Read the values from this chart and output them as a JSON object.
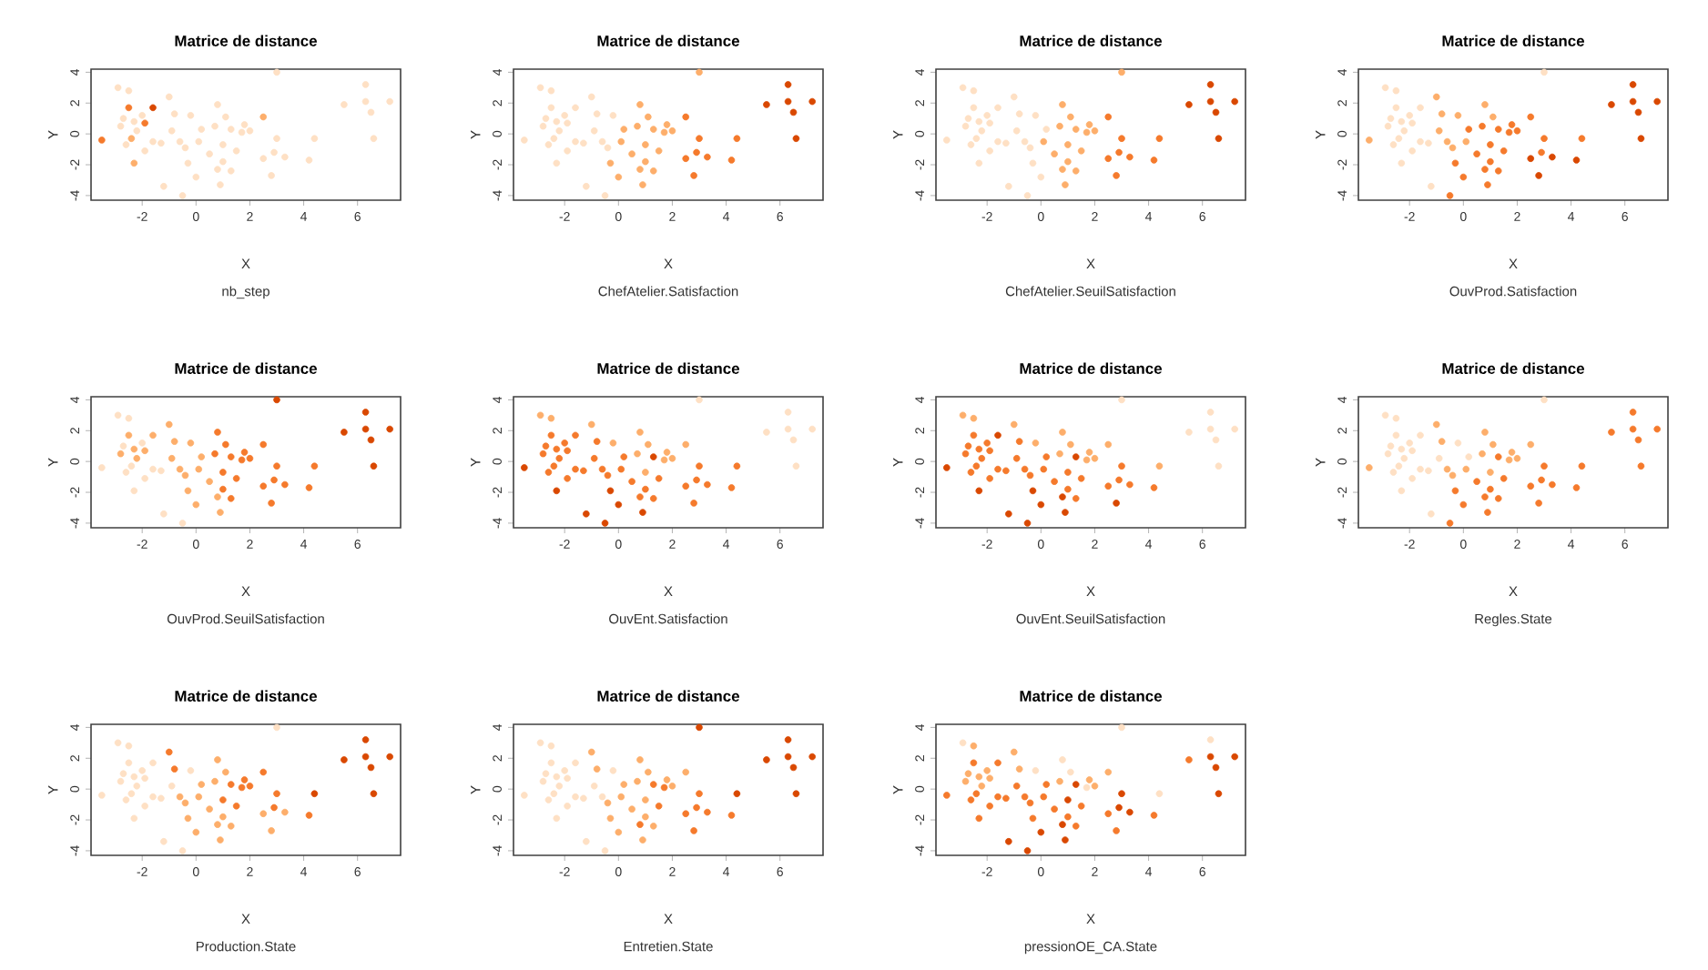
{
  "chart_data": [
    {
      "type": "scatter",
      "title": "Matrice de distance",
      "subtitle": "nb_step",
      "xlabel": "X",
      "ylabel": "Y",
      "marker": "circle",
      "xlim": [
        -3.9,
        7.6
      ],
      "ylim": [
        -4.3,
        4.2
      ],
      "xticks": [
        -2,
        0,
        2,
        4,
        6
      ],
      "yticks": [
        -4,
        -2,
        0,
        2,
        4
      ],
      "x": [
        -3.5,
        -2.9,
        -2.8,
        -2.7,
        -2.6,
        -2.5,
        -2.5,
        -2.4,
        -2.3,
        -2.3,
        -2.2,
        -2.0,
        -1.9,
        -1.9,
        -1.6,
        -1.6,
        -1.3,
        -1.2,
        -1.0,
        -0.9,
        -0.8,
        -0.6,
        -0.5,
        -0.4,
        -0.3,
        -0.2,
        0.0,
        0.1,
        0.2,
        0.5,
        0.7,
        0.8,
        0.8,
        0.9,
        1.0,
        1.0,
        1.1,
        1.3,
        1.3,
        1.5,
        1.7,
        1.8,
        2.0,
        2.5,
        2.5,
        2.8,
        2.9,
        3.0,
        3.0,
        3.3,
        4.2,
        4.4,
        5.5,
        6.3,
        6.3,
        6.5,
        6.6,
        7.2
      ],
      "values": [
        -0.4,
        3.0,
        0.5,
        1.0,
        -0.7,
        2.8,
        1.7,
        -0.3,
        -1.9,
        0.8,
        0.2,
        1.2,
        0.7,
        -1.1,
        1.7,
        -0.5,
        -0.6,
        -3.4,
        2.4,
        0.2,
        1.3,
        -0.5,
        -4.0,
        -0.9,
        -1.9,
        1.2,
        -2.8,
        -0.5,
        0.3,
        -1.3,
        0.5,
        -2.3,
        1.9,
        -3.3,
        -0.7,
        -1.8,
        1.1,
        0.3,
        -2.4,
        -1.1,
        0.1,
        0.6,
        0.2,
        1.1,
        -1.6,
        -2.7,
        -1.2,
        4.0,
        -0.3,
        -1.5,
        -1.7,
        -0.3,
        1.9,
        3.2,
        2.1,
        1.4,
        -0.3,
        2.1
      ],
      "colors": [
        "#f57a2c",
        "#fee0c4",
        "#fee0c4",
        "#fee0c4",
        "#fee0c4",
        "#fee0c4",
        "#f57a2c",
        "#fdae6b",
        "#fdae6b",
        "#fee0c4",
        "#fee0c4",
        "#fee0c4",
        "#f57a2c",
        "#fee0c4",
        "#d94801",
        "#fee0c4",
        "#fee0c4",
        "#fee0c4",
        "#fee0c4",
        "#fee0c4",
        "#fee0c4",
        "#fee0c4",
        "#fee0c4",
        "#fee0c4",
        "#fee0c4",
        "#fee0c4",
        "#fee0c4",
        "#fee0c4",
        "#fee0c4",
        "#fee0c4",
        "#fee0c4",
        "#fee0c4",
        "#fee0c4",
        "#fee0c4",
        "#fee0c4",
        "#fee0c4",
        "#fee0c4",
        "#fee0c4",
        "#fee0c4",
        "#fee0c4",
        "#fee0c4",
        "#fee0c4",
        "#fee0c4",
        "#fdae6b",
        "#fee0c4",
        "#fee0c4",
        "#fee0c4",
        "#fee0c4",
        "#fee0c4",
        "#fee0c4",
        "#fee0c4",
        "#fee0c4",
        "#fee0c4",
        "#fee0c4",
        "#fee0c4",
        "#fee0c4",
        "#fee0c4",
        "#fee0c4"
      ]
    },
    {
      "type": "scatter",
      "title": "Matrice de distance",
      "subtitle": "ChefAtelier.Satisfaction",
      "xlabel": "X",
      "ylabel": "Y",
      "marker": "circle",
      "xlim": [
        -3.9,
        7.6
      ],
      "ylim": [
        -4.3,
        4.2
      ],
      "xticks": [
        -2,
        0,
        2,
        4,
        6
      ],
      "yticks": [
        -4,
        -2,
        0,
        2,
        4
      ],
      "x": [
        -3.5,
        -2.9,
        -2.8,
        -2.7,
        -2.6,
        -2.5,
        -2.5,
        -2.4,
        -2.3,
        -2.3,
        -2.2,
        -2.0,
        -1.9,
        -1.9,
        -1.6,
        -1.6,
        -1.3,
        -1.2,
        -1.0,
        -0.9,
        -0.8,
        -0.6,
        -0.5,
        -0.4,
        -0.3,
        -0.2,
        0.0,
        0.1,
        0.2,
        0.5,
        0.7,
        0.8,
        0.8,
        0.9,
        1.0,
        1.0,
        1.1,
        1.3,
        1.3,
        1.5,
        1.7,
        1.8,
        2.0,
        2.5,
        2.5,
        2.8,
        2.9,
        3.0,
        3.0,
        3.3,
        4.2,
        4.4,
        5.5,
        6.3,
        6.3,
        6.5,
        6.6,
        7.2
      ],
      "values": [
        -0.4,
        3.0,
        0.5,
        1.0,
        -0.7,
        2.8,
        1.7,
        -0.3,
        -1.9,
        0.8,
        0.2,
        1.2,
        0.7,
        -1.1,
        1.7,
        -0.5,
        -0.6,
        -3.4,
        2.4,
        0.2,
        1.3,
        -0.5,
        -4.0,
        -0.9,
        -1.9,
        1.2,
        -2.8,
        -0.5,
        0.3,
        -1.3,
        0.5,
        -2.3,
        1.9,
        -3.3,
        -0.7,
        -1.8,
        1.1,
        0.3,
        -2.4,
        -1.1,
        0.1,
        0.6,
        0.2,
        1.1,
        -1.6,
        -2.7,
        -1.2,
        4.0,
        -0.3,
        -1.5,
        -1.7,
        -0.3,
        1.9,
        3.2,
        2.1,
        1.4,
        -0.3,
        2.1
      ],
      "colors": [
        "#fee0c4",
        "#fee0c4",
        "#fee0c4",
        "#fee0c4",
        "#fee0c4",
        "#fee0c4",
        "#fee0c4",
        "#fee0c4",
        "#fee0c4",
        "#fee0c4",
        "#fee0c4",
        "#fee0c4",
        "#fee0c4",
        "#fee0c4",
        "#fee0c4",
        "#fee0c4",
        "#fee0c4",
        "#fee0c4",
        "#fee0c4",
        "#fee0c4",
        "#fee0c4",
        "#fee0c4",
        "#fee0c4",
        "#fee0c4",
        "#fdae6b",
        "#fee0c4",
        "#fdae6b",
        "#fdae6b",
        "#fdae6b",
        "#fdae6b",
        "#fdae6b",
        "#fdae6b",
        "#fdae6b",
        "#fdae6b",
        "#fdae6b",
        "#fdae6b",
        "#fdae6b",
        "#fdae6b",
        "#fdae6b",
        "#fdae6b",
        "#fdae6b",
        "#fdae6b",
        "#fdae6b",
        "#f57a2c",
        "#f57a2c",
        "#f57a2c",
        "#f57a2c",
        "#fdae6b",
        "#f57a2c",
        "#f57a2c",
        "#f57a2c",
        "#f57a2c",
        "#d94801",
        "#d94801",
        "#d94801",
        "#d94801",
        "#d94801",
        "#d94801"
      ]
    },
    {
      "type": "scatter",
      "title": "Matrice de distance",
      "subtitle": "ChefAtelier.SeuilSatisfaction",
      "xlabel": "X",
      "ylabel": "Y",
      "marker": "circle",
      "xlim": [
        -3.9,
        7.6
      ],
      "ylim": [
        -4.3,
        4.2
      ],
      "xticks": [
        -2,
        0,
        2,
        4,
        6
      ],
      "yticks": [
        -4,
        -2,
        0,
        2,
        4
      ],
      "x": [
        -3.5,
        -2.9,
        -2.8,
        -2.7,
        -2.6,
        -2.5,
        -2.5,
        -2.4,
        -2.3,
        -2.3,
        -2.2,
        -2.0,
        -1.9,
        -1.9,
        -1.6,
        -1.6,
        -1.3,
        -1.2,
        -1.0,
        -0.9,
        -0.8,
        -0.6,
        -0.5,
        -0.4,
        -0.3,
        -0.2,
        0.0,
        0.1,
        0.2,
        0.5,
        0.7,
        0.8,
        0.8,
        0.9,
        1.0,
        1.0,
        1.1,
        1.3,
        1.3,
        1.5,
        1.7,
        1.8,
        2.0,
        2.5,
        2.5,
        2.8,
        2.9,
        3.0,
        3.0,
        3.3,
        4.2,
        4.4,
        5.5,
        6.3,
        6.3,
        6.5,
        6.6,
        7.2
      ],
      "values": [
        -0.4,
        3.0,
        0.5,
        1.0,
        -0.7,
        2.8,
        1.7,
        -0.3,
        -1.9,
        0.8,
        0.2,
        1.2,
        0.7,
        -1.1,
        1.7,
        -0.5,
        -0.6,
        -3.4,
        2.4,
        0.2,
        1.3,
        -0.5,
        -4.0,
        -0.9,
        -1.9,
        1.2,
        -2.8,
        -0.5,
        0.3,
        -1.3,
        0.5,
        -2.3,
        1.9,
        -3.3,
        -0.7,
        -1.8,
        1.1,
        0.3,
        -2.4,
        -1.1,
        0.1,
        0.6,
        0.2,
        1.1,
        -1.6,
        -2.7,
        -1.2,
        4.0,
        -0.3,
        -1.5,
        -1.7,
        -0.3,
        1.9,
        3.2,
        2.1,
        1.4,
        -0.3,
        2.1
      ],
      "colors": [
        "#fee0c4",
        "#fee0c4",
        "#fee0c4",
        "#fee0c4",
        "#fee0c4",
        "#fee0c4",
        "#fee0c4",
        "#fee0c4",
        "#fee0c4",
        "#fee0c4",
        "#fee0c4",
        "#fee0c4",
        "#fee0c4",
        "#fee0c4",
        "#fee0c4",
        "#fee0c4",
        "#fee0c4",
        "#fee0c4",
        "#fee0c4",
        "#fee0c4",
        "#fee0c4",
        "#fee0c4",
        "#fee0c4",
        "#fee0c4",
        "#fee0c4",
        "#fee0c4",
        "#fee0c4",
        "#fdae6b",
        "#fee0c4",
        "#fdae6b",
        "#fdae6b",
        "#fdae6b",
        "#fdae6b",
        "#fdae6b",
        "#fdae6b",
        "#fdae6b",
        "#fdae6b",
        "#fdae6b",
        "#fdae6b",
        "#fdae6b",
        "#fdae6b",
        "#fdae6b",
        "#fdae6b",
        "#f57a2c",
        "#f57a2c",
        "#f57a2c",
        "#f57a2c",
        "#fdae6b",
        "#f57a2c",
        "#f57a2c",
        "#f57a2c",
        "#f57a2c",
        "#d94801",
        "#d94801",
        "#d94801",
        "#d94801",
        "#d94801",
        "#d94801"
      ]
    },
    {
      "type": "scatter",
      "title": "Matrice de distance",
      "subtitle": "OuvProd.Satisfaction",
      "xlabel": "X",
      "ylabel": "Y",
      "marker": "circle",
      "xlim": [
        -3.9,
        7.6
      ],
      "ylim": [
        -4.3,
        4.2
      ],
      "xticks": [
        -2,
        0,
        2,
        4,
        6
      ],
      "yticks": [
        -4,
        -2,
        0,
        2,
        4
      ],
      "x": [
        -3.5,
        -2.9,
        -2.8,
        -2.7,
        -2.6,
        -2.5,
        -2.5,
        -2.4,
        -2.3,
        -2.3,
        -2.2,
        -2.0,
        -1.9,
        -1.9,
        -1.6,
        -1.6,
        -1.3,
        -1.2,
        -1.0,
        -0.9,
        -0.8,
        -0.6,
        -0.5,
        -0.4,
        -0.3,
        -0.2,
        0.0,
        0.1,
        0.2,
        0.5,
        0.7,
        0.8,
        0.8,
        0.9,
        1.0,
        1.0,
        1.1,
        1.3,
        1.3,
        1.5,
        1.7,
        1.8,
        2.0,
        2.5,
        2.5,
        2.8,
        2.9,
        3.0,
        3.0,
        3.3,
        4.2,
        4.4,
        5.5,
        6.3,
        6.3,
        6.5,
        6.6,
        7.2
      ],
      "values": [
        -0.4,
        3.0,
        0.5,
        1.0,
        -0.7,
        2.8,
        1.7,
        -0.3,
        -1.9,
        0.8,
        0.2,
        1.2,
        0.7,
        -1.1,
        1.7,
        -0.5,
        -0.6,
        -3.4,
        2.4,
        0.2,
        1.3,
        -0.5,
        -4.0,
        -0.9,
        -1.9,
        1.2,
        -2.8,
        -0.5,
        0.3,
        -1.3,
        0.5,
        -2.3,
        1.9,
        -3.3,
        -0.7,
        -1.8,
        1.1,
        0.3,
        -2.4,
        -1.1,
        0.1,
        0.6,
        0.2,
        1.1,
        -1.6,
        -2.7,
        -1.2,
        4.0,
        -0.3,
        -1.5,
        -1.7,
        -0.3,
        1.9,
        3.2,
        2.1,
        1.4,
        -0.3,
        2.1
      ],
      "colors": [
        "#fdae6b",
        "#fee0c4",
        "#fee0c4",
        "#fee0c4",
        "#fee0c4",
        "#fee0c4",
        "#fee0c4",
        "#fee0c4",
        "#fee0c4",
        "#fee0c4",
        "#fee0c4",
        "#fee0c4",
        "#fee0c4",
        "#fee0c4",
        "#fee0c4",
        "#fee0c4",
        "#fee0c4",
        "#fee0c4",
        "#fdae6b",
        "#fdae6b",
        "#fdae6b",
        "#fdae6b",
        "#f57a2c",
        "#fdae6b",
        "#f57a2c",
        "#fdae6b",
        "#f57a2c",
        "#fdae6b",
        "#f57a2c",
        "#f57a2c",
        "#f57a2c",
        "#f57a2c",
        "#fdae6b",
        "#f57a2c",
        "#f57a2c",
        "#f57a2c",
        "#fdae6b",
        "#f57a2c",
        "#f57a2c",
        "#f57a2c",
        "#f57a2c",
        "#f57a2c",
        "#f57a2c",
        "#f57a2c",
        "#d94801",
        "#d94801",
        "#f57a2c",
        "#fee0c4",
        "#f57a2c",
        "#d94801",
        "#d94801",
        "#f57a2c",
        "#d94801",
        "#d94801",
        "#d94801",
        "#d94801",
        "#d94801",
        "#d94801"
      ]
    },
    {
      "type": "scatter",
      "title": "Matrice de distance",
      "subtitle": "OuvProd.SeuilSatisfaction",
      "xlabel": "X",
      "ylabel": "Y",
      "marker": "circle",
      "xlim": [
        -3.9,
        7.6
      ],
      "ylim": [
        -4.3,
        4.2
      ],
      "xticks": [
        -2,
        0,
        2,
        4,
        6
      ],
      "yticks": [
        -4,
        -2,
        0,
        2,
        4
      ],
      "x": [
        -3.5,
        -2.9,
        -2.8,
        -2.7,
        -2.6,
        -2.5,
        -2.5,
        -2.4,
        -2.3,
        -2.3,
        -2.2,
        -2.0,
        -1.9,
        -1.9,
        -1.6,
        -1.6,
        -1.3,
        -1.2,
        -1.0,
        -0.9,
        -0.8,
        -0.6,
        -0.5,
        -0.4,
        -0.3,
        -0.2,
        0.0,
        0.1,
        0.2,
        0.5,
        0.7,
        0.8,
        0.8,
        0.9,
        1.0,
        1.0,
        1.1,
        1.3,
        1.3,
        1.5,
        1.7,
        1.8,
        2.0,
        2.5,
        2.5,
        2.8,
        2.9,
        3.0,
        3.0,
        3.3,
        4.2,
        4.4,
        5.5,
        6.3,
        6.3,
        6.5,
        6.6,
        7.2
      ],
      "values": [
        -0.4,
        3.0,
        0.5,
        1.0,
        -0.7,
        2.8,
        1.7,
        -0.3,
        -1.9,
        0.8,
        0.2,
        1.2,
        0.7,
        -1.1,
        1.7,
        -0.5,
        -0.6,
        -3.4,
        2.4,
        0.2,
        1.3,
        -0.5,
        -4.0,
        -0.9,
        -1.9,
        1.2,
        -2.8,
        -0.5,
        0.3,
        -1.3,
        0.5,
        -2.3,
        1.9,
        -3.3,
        -0.7,
        -1.8,
        1.1,
        0.3,
        -2.4,
        -1.1,
        0.1,
        0.6,
        0.2,
        1.1,
        -1.6,
        -2.7,
        -1.2,
        4.0,
        -0.3,
        -1.5,
        -1.7,
        -0.3,
        1.9,
        3.2,
        2.1,
        1.4,
        -0.3,
        2.1
      ],
      "colors": [
        "#fee0c4",
        "#fee0c4",
        "#fdae6b",
        "#fee0c4",
        "#fee0c4",
        "#fee0c4",
        "#fdae6b",
        "#fee0c4",
        "#fee0c4",
        "#fdae6b",
        "#fdae6b",
        "#fee0c4",
        "#fdae6b",
        "#fee0c4",
        "#fdae6b",
        "#fee0c4",
        "#fee0c4",
        "#fee0c4",
        "#fdae6b",
        "#fdae6b",
        "#fdae6b",
        "#fdae6b",
        "#fee0c4",
        "#fdae6b",
        "#fdae6b",
        "#fdae6b",
        "#fdae6b",
        "#fdae6b",
        "#fdae6b",
        "#fdae6b",
        "#f57a2c",
        "#fdae6b",
        "#f57a2c",
        "#fdae6b",
        "#f57a2c",
        "#f57a2c",
        "#f57a2c",
        "#f57a2c",
        "#f57a2c",
        "#f57a2c",
        "#f57a2c",
        "#f57a2c",
        "#f57a2c",
        "#f57a2c",
        "#f57a2c",
        "#f57a2c",
        "#f57a2c",
        "#d94801",
        "#f57a2c",
        "#f57a2c",
        "#f57a2c",
        "#f57a2c",
        "#d94801",
        "#d94801",
        "#d94801",
        "#d94801",
        "#d94801",
        "#d94801"
      ]
    },
    {
      "type": "scatter",
      "title": "Matrice de distance",
      "subtitle": "OuvEnt.Satisfaction",
      "xlabel": "X",
      "ylabel": "Y",
      "marker": "circle",
      "xlim": [
        -3.9,
        7.6
      ],
      "ylim": [
        -4.3,
        4.2
      ],
      "xticks": [
        -2,
        0,
        2,
        4,
        6
      ],
      "yticks": [
        -4,
        -2,
        0,
        2,
        4
      ],
      "x": [
        -3.5,
        -2.9,
        -2.8,
        -2.7,
        -2.6,
        -2.5,
        -2.5,
        -2.4,
        -2.3,
        -2.3,
        -2.2,
        -2.0,
        -1.9,
        -1.9,
        -1.6,
        -1.6,
        -1.3,
        -1.2,
        -1.0,
        -0.9,
        -0.8,
        -0.6,
        -0.5,
        -0.4,
        -0.3,
        -0.2,
        0.0,
        0.1,
        0.2,
        0.5,
        0.7,
        0.8,
        0.8,
        0.9,
        1.0,
        1.0,
        1.1,
        1.3,
        1.3,
        1.5,
        1.7,
        1.8,
        2.0,
        2.5,
        2.5,
        2.8,
        2.9,
        3.0,
        3.0,
        3.3,
        4.2,
        4.4,
        5.5,
        6.3,
        6.3,
        6.5,
        6.6,
        7.2
      ],
      "values": [
        -0.4,
        3.0,
        0.5,
        1.0,
        -0.7,
        2.8,
        1.7,
        -0.3,
        -1.9,
        0.8,
        0.2,
        1.2,
        0.7,
        -1.1,
        1.7,
        -0.5,
        -0.6,
        -3.4,
        2.4,
        0.2,
        1.3,
        -0.5,
        -4.0,
        -0.9,
        -1.9,
        1.2,
        -2.8,
        -0.5,
        0.3,
        -1.3,
        0.5,
        -2.3,
        1.9,
        -3.3,
        -0.7,
        -1.8,
        1.1,
        0.3,
        -2.4,
        -1.1,
        0.1,
        0.6,
        0.2,
        1.1,
        -1.6,
        -2.7,
        -1.2,
        4.0,
        -0.3,
        -1.5,
        -1.7,
        -0.3,
        1.9,
        3.2,
        2.1,
        1.4,
        -0.3,
        2.1
      ],
      "colors": [
        "#d94801",
        "#fdae6b",
        "#f57a2c",
        "#f57a2c",
        "#f57a2c",
        "#fdae6b",
        "#f57a2c",
        "#f57a2c",
        "#d94801",
        "#f57a2c",
        "#f57a2c",
        "#f57a2c",
        "#f57a2c",
        "#f57a2c",
        "#f57a2c",
        "#f57a2c",
        "#f57a2c",
        "#d94801",
        "#fdae6b",
        "#f57a2c",
        "#f57a2c",
        "#f57a2c",
        "#d94801",
        "#f57a2c",
        "#d94801",
        "#fdae6b",
        "#d94801",
        "#f57a2c",
        "#f57a2c",
        "#f57a2c",
        "#fdae6b",
        "#f57a2c",
        "#fdae6b",
        "#d94801",
        "#fdae6b",
        "#f57a2c",
        "#fdae6b",
        "#d94801",
        "#f57a2c",
        "#f57a2c",
        "#fdae6b",
        "#fdae6b",
        "#fdae6b",
        "#fdae6b",
        "#f57a2c",
        "#f57a2c",
        "#f57a2c",
        "#fee0c4",
        "#f57a2c",
        "#f57a2c",
        "#f57a2c",
        "#f57a2c",
        "#fee0c4",
        "#fee0c4",
        "#fee0c4",
        "#fee0c4",
        "#fee0c4",
        "#fee0c4"
      ]
    },
    {
      "type": "scatter",
      "title": "Matrice de distance",
      "subtitle": "OuvEnt.SeuilSatisfaction",
      "xlabel": "X",
      "ylabel": "Y",
      "marker": "circle",
      "xlim": [
        -3.9,
        7.6
      ],
      "ylim": [
        -4.3,
        4.2
      ],
      "xticks": [
        -2,
        0,
        2,
        4,
        6
      ],
      "yticks": [
        -4,
        -2,
        0,
        2,
        4
      ],
      "x": [
        -3.5,
        -2.9,
        -2.8,
        -2.7,
        -2.6,
        -2.5,
        -2.5,
        -2.4,
        -2.3,
        -2.3,
        -2.2,
        -2.0,
        -1.9,
        -1.9,
        -1.6,
        -1.6,
        -1.3,
        -1.2,
        -1.0,
        -0.9,
        -0.8,
        -0.6,
        -0.5,
        -0.4,
        -0.3,
        -0.2,
        0.0,
        0.1,
        0.2,
        0.5,
        0.7,
        0.8,
        0.8,
        0.9,
        1.0,
        1.0,
        1.1,
        1.3,
        1.3,
        1.5,
        1.7,
        1.8,
        2.0,
        2.5,
        2.5,
        2.8,
        2.9,
        3.0,
        3.0,
        3.3,
        4.2,
        4.4,
        5.5,
        6.3,
        6.3,
        6.5,
        6.6,
        7.2
      ],
      "values": [
        -0.4,
        3.0,
        0.5,
        1.0,
        -0.7,
        2.8,
        1.7,
        -0.3,
        -1.9,
        0.8,
        0.2,
        1.2,
        0.7,
        -1.1,
        1.7,
        -0.5,
        -0.6,
        -3.4,
        2.4,
        0.2,
        1.3,
        -0.5,
        -4.0,
        -0.9,
        -1.9,
        1.2,
        -2.8,
        -0.5,
        0.3,
        -1.3,
        0.5,
        -2.3,
        1.9,
        -3.3,
        -0.7,
        -1.8,
        1.1,
        0.3,
        -2.4,
        -1.1,
        0.1,
        0.6,
        0.2,
        1.1,
        -1.6,
        -2.7,
        -1.2,
        4.0,
        -0.3,
        -1.5,
        -1.7,
        -0.3,
        1.9,
        3.2,
        2.1,
        1.4,
        -0.3,
        2.1
      ],
      "colors": [
        "#d94801",
        "#fdae6b",
        "#f57a2c",
        "#f57a2c",
        "#f57a2c",
        "#fdae6b",
        "#f57a2c",
        "#f57a2c",
        "#d94801",
        "#f57a2c",
        "#f57a2c",
        "#f57a2c",
        "#f57a2c",
        "#f57a2c",
        "#d94801",
        "#f57a2c",
        "#f57a2c",
        "#d94801",
        "#fdae6b",
        "#f57a2c",
        "#f57a2c",
        "#f57a2c",
        "#d94801",
        "#f57a2c",
        "#d94801",
        "#fdae6b",
        "#d94801",
        "#f57a2c",
        "#f57a2c",
        "#f57a2c",
        "#fdae6b",
        "#d94801",
        "#fdae6b",
        "#d94801",
        "#f57a2c",
        "#f57a2c",
        "#fdae6b",
        "#d94801",
        "#f57a2c",
        "#f57a2c",
        "#fdae6b",
        "#fdae6b",
        "#fdae6b",
        "#fdae6b",
        "#f57a2c",
        "#d94801",
        "#f57a2c",
        "#fee0c4",
        "#f57a2c",
        "#f57a2c",
        "#f57a2c",
        "#fdae6b",
        "#fee0c4",
        "#fee0c4",
        "#fee0c4",
        "#fee0c4",
        "#fee0c4",
        "#fee0c4"
      ]
    },
    {
      "type": "scatter",
      "title": "Matrice de distance",
      "subtitle": "Regles.State",
      "xlabel": "X",
      "ylabel": "Y",
      "marker": "circle",
      "xlim": [
        -3.9,
        7.6
      ],
      "ylim": [
        -4.3,
        4.2
      ],
      "xticks": [
        -2,
        0,
        2,
        4,
        6
      ],
      "yticks": [
        -4,
        -2,
        0,
        2,
        4
      ],
      "x": [
        -3.5,
        -2.9,
        -2.8,
        -2.7,
        -2.6,
        -2.5,
        -2.5,
        -2.4,
        -2.3,
        -2.3,
        -2.2,
        -2.0,
        -1.9,
        -1.9,
        -1.6,
        -1.6,
        -1.3,
        -1.2,
        -1.0,
        -0.9,
        -0.8,
        -0.6,
        -0.5,
        -0.4,
        -0.3,
        -0.2,
        0.0,
        0.1,
        0.2,
        0.5,
        0.7,
        0.8,
        0.8,
        0.9,
        1.0,
        1.0,
        1.1,
        1.3,
        1.3,
        1.5,
        1.7,
        1.8,
        2.0,
        2.5,
        2.5,
        2.8,
        2.9,
        3.0,
        3.0,
        3.3,
        4.2,
        4.4,
        5.5,
        6.3,
        6.3,
        6.5,
        6.6,
        7.2
      ],
      "values": [
        -0.4,
        3.0,
        0.5,
        1.0,
        -0.7,
        2.8,
        1.7,
        -0.3,
        -1.9,
        0.8,
        0.2,
        1.2,
        0.7,
        -1.1,
        1.7,
        -0.5,
        -0.6,
        -3.4,
        2.4,
        0.2,
        1.3,
        -0.5,
        -4.0,
        -0.9,
        -1.9,
        1.2,
        -2.8,
        -0.5,
        0.3,
        -1.3,
        0.5,
        -2.3,
        1.9,
        -3.3,
        -0.7,
        -1.8,
        1.1,
        0.3,
        -2.4,
        -1.1,
        0.1,
        0.6,
        0.2,
        1.1,
        -1.6,
        -2.7,
        -1.2,
        4.0,
        -0.3,
        -1.5,
        -1.7,
        -0.3,
        1.9,
        3.2,
        2.1,
        1.4,
        -0.3,
        2.1
      ],
      "colors": [
        "#fdae6b",
        "#fee0c4",
        "#fee0c4",
        "#fee0c4",
        "#fee0c4",
        "#fee0c4",
        "#fee0c4",
        "#fee0c4",
        "#fee0c4",
        "#fee0c4",
        "#fee0c4",
        "#fee0c4",
        "#fee0c4",
        "#fee0c4",
        "#fee0c4",
        "#fee0c4",
        "#fee0c4",
        "#fee0c4",
        "#fdae6b",
        "#fee0c4",
        "#fdae6b",
        "#fdae6b",
        "#f57a2c",
        "#fdae6b",
        "#f57a2c",
        "#fee0c4",
        "#f57a2c",
        "#fdae6b",
        "#fee0c4",
        "#f57a2c",
        "#fdae6b",
        "#f57a2c",
        "#fdae6b",
        "#f57a2c",
        "#fdae6b",
        "#f57a2c",
        "#fdae6b",
        "#f57a2c",
        "#f57a2c",
        "#f57a2c",
        "#fdae6b",
        "#fdae6b",
        "#fdae6b",
        "#fdae6b",
        "#f57a2c",
        "#f57a2c",
        "#f57a2c",
        "#fee0c4",
        "#f57a2c",
        "#f57a2c",
        "#f57a2c",
        "#f57a2c",
        "#f57a2c",
        "#f57a2c",
        "#f57a2c",
        "#f57a2c",
        "#f57a2c",
        "#f57a2c"
      ]
    },
    {
      "type": "scatter",
      "title": "Matrice de distance",
      "subtitle": "Production.State",
      "xlabel": "X",
      "ylabel": "Y",
      "marker": "circle",
      "xlim": [
        -3.9,
        7.6
      ],
      "ylim": [
        -4.3,
        4.2
      ],
      "xticks": [
        -2,
        0,
        2,
        4,
        6
      ],
      "yticks": [
        -4,
        -2,
        0,
        2,
        4
      ],
      "x": [
        -3.5,
        -2.9,
        -2.8,
        -2.7,
        -2.6,
        -2.5,
        -2.5,
        -2.4,
        -2.3,
        -2.3,
        -2.2,
        -2.0,
        -1.9,
        -1.9,
        -1.6,
        -1.6,
        -1.3,
        -1.2,
        -1.0,
        -0.9,
        -0.8,
        -0.6,
        -0.5,
        -0.4,
        -0.3,
        -0.2,
        0.0,
        0.1,
        0.2,
        0.5,
        0.7,
        0.8,
        0.8,
        0.9,
        1.0,
        1.0,
        1.1,
        1.3,
        1.3,
        1.5,
        1.7,
        1.8,
        2.0,
        2.5,
        2.5,
        2.8,
        2.9,
        3.0,
        3.0,
        3.3,
        4.2,
        4.4,
        5.5,
        6.3,
        6.3,
        6.5,
        6.6,
        7.2
      ],
      "values": [
        -0.4,
        3.0,
        0.5,
        1.0,
        -0.7,
        2.8,
        1.7,
        -0.3,
        -1.9,
        0.8,
        0.2,
        1.2,
        0.7,
        -1.1,
        1.7,
        -0.5,
        -0.6,
        -3.4,
        2.4,
        0.2,
        1.3,
        -0.5,
        -4.0,
        -0.9,
        -1.9,
        1.2,
        -2.8,
        -0.5,
        0.3,
        -1.3,
        0.5,
        -2.3,
        1.9,
        -3.3,
        -0.7,
        -1.8,
        1.1,
        0.3,
        -2.4,
        -1.1,
        0.1,
        0.6,
        0.2,
        1.1,
        -1.6,
        -2.7,
        -1.2,
        4.0,
        -0.3,
        -1.5,
        -1.7,
        -0.3,
        1.9,
        3.2,
        2.1,
        1.4,
        -0.3,
        2.1
      ],
      "colors": [
        "#fee0c4",
        "#fee0c4",
        "#fee0c4",
        "#fee0c4",
        "#fee0c4",
        "#fee0c4",
        "#fee0c4",
        "#fee0c4",
        "#fee0c4",
        "#fee0c4",
        "#fee0c4",
        "#fee0c4",
        "#fee0c4",
        "#fee0c4",
        "#fee0c4",
        "#fee0c4",
        "#fee0c4",
        "#fee0c4",
        "#f57a2c",
        "#fee0c4",
        "#f57a2c",
        "#fdae6b",
        "#fee0c4",
        "#fdae6b",
        "#fdae6b",
        "#fee0c4",
        "#fdae6b",
        "#fdae6b",
        "#fdae6b",
        "#fdae6b",
        "#fdae6b",
        "#fdae6b",
        "#fdae6b",
        "#fdae6b",
        "#f57a2c",
        "#fdae6b",
        "#fdae6b",
        "#f57a2c",
        "#fdae6b",
        "#f57a2c",
        "#f57a2c",
        "#f57a2c",
        "#f57a2c",
        "#f57a2c",
        "#fdae6b",
        "#fdae6b",
        "#f57a2c",
        "#fee0c4",
        "#f57a2c",
        "#fdae6b",
        "#f57a2c",
        "#d94801",
        "#d94801",
        "#d94801",
        "#d94801",
        "#d94801",
        "#d94801",
        "#d94801"
      ]
    },
    {
      "type": "scatter",
      "title": "Matrice de distance",
      "subtitle": "Entretien.State",
      "xlabel": "X",
      "ylabel": "Y",
      "marker": "circle",
      "xlim": [
        -3.9,
        7.6
      ],
      "ylim": [
        -4.3,
        4.2
      ],
      "xticks": [
        -2,
        0,
        2,
        4,
        6
      ],
      "yticks": [
        -4,
        -2,
        0,
        2,
        4
      ],
      "x": [
        -3.5,
        -2.9,
        -2.8,
        -2.7,
        -2.6,
        -2.5,
        -2.5,
        -2.4,
        -2.3,
        -2.3,
        -2.2,
        -2.0,
        -1.9,
        -1.9,
        -1.6,
        -1.6,
        -1.3,
        -1.2,
        -1.0,
        -0.9,
        -0.8,
        -0.6,
        -0.5,
        -0.4,
        -0.3,
        -0.2,
        0.0,
        0.1,
        0.2,
        0.5,
        0.7,
        0.8,
        0.8,
        0.9,
        1.0,
        1.0,
        1.1,
        1.3,
        1.3,
        1.5,
        1.7,
        1.8,
        2.0,
        2.5,
        2.5,
        2.8,
        2.9,
        3.0,
        3.0,
        3.3,
        4.2,
        4.4,
        5.5,
        6.3,
        6.3,
        6.5,
        6.6,
        7.2
      ],
      "values": [
        -0.4,
        3.0,
        0.5,
        1.0,
        -0.7,
        2.8,
        1.7,
        -0.3,
        -1.9,
        0.8,
        0.2,
        1.2,
        0.7,
        -1.1,
        1.7,
        -0.5,
        -0.6,
        -3.4,
        2.4,
        0.2,
        1.3,
        -0.5,
        -4.0,
        -0.9,
        -1.9,
        1.2,
        -2.8,
        -0.5,
        0.3,
        -1.3,
        0.5,
        -2.3,
        1.9,
        -3.3,
        -0.7,
        -1.8,
        1.1,
        0.3,
        -2.4,
        -1.1,
        0.1,
        0.6,
        0.2,
        1.1,
        -1.6,
        -2.7,
        -1.2,
        4.0,
        -0.3,
        -1.5,
        -1.7,
        -0.3,
        1.9,
        3.2,
        2.1,
        1.4,
        -0.3,
        2.1
      ],
      "colors": [
        "#fee0c4",
        "#fee0c4",
        "#fee0c4",
        "#fee0c4",
        "#fee0c4",
        "#fee0c4",
        "#fee0c4",
        "#fee0c4",
        "#fee0c4",
        "#fee0c4",
        "#fee0c4",
        "#fee0c4",
        "#fee0c4",
        "#fee0c4",
        "#fee0c4",
        "#fee0c4",
        "#fee0c4",
        "#fee0c4",
        "#fdae6b",
        "#fee0c4",
        "#fdae6b",
        "#fee0c4",
        "#fee0c4",
        "#fdae6b",
        "#fdae6b",
        "#fee0c4",
        "#fdae6b",
        "#fdae6b",
        "#fdae6b",
        "#fdae6b",
        "#fdae6b",
        "#f57a2c",
        "#fdae6b",
        "#fdae6b",
        "#fdae6b",
        "#fdae6b",
        "#fdae6b",
        "#f57a2c",
        "#fdae6b",
        "#f57a2c",
        "#f57a2c",
        "#fdae6b",
        "#fdae6b",
        "#fdae6b",
        "#f57a2c",
        "#f57a2c",
        "#f57a2c",
        "#d94801",
        "#f57a2c",
        "#f57a2c",
        "#f57a2c",
        "#d94801",
        "#d94801",
        "#d94801",
        "#d94801",
        "#d94801",
        "#d94801",
        "#d94801"
      ]
    },
    {
      "type": "scatter",
      "title": "Matrice de distance",
      "subtitle": "pressionOE_CA.State",
      "xlabel": "X",
      "ylabel": "Y",
      "marker": "circle",
      "xlim": [
        -3.9,
        7.6
      ],
      "ylim": [
        -4.3,
        4.2
      ],
      "xticks": [
        -2,
        0,
        2,
        4,
        6
      ],
      "yticks": [
        -4,
        -2,
        0,
        2,
        4
      ],
      "x": [
        -3.5,
        -2.9,
        -2.8,
        -2.7,
        -2.6,
        -2.5,
        -2.5,
        -2.4,
        -2.3,
        -2.3,
        -2.2,
        -2.0,
        -1.9,
        -1.9,
        -1.6,
        -1.6,
        -1.3,
        -1.2,
        -1.0,
        -0.9,
        -0.8,
        -0.6,
        -0.5,
        -0.4,
        -0.3,
        -0.2,
        0.0,
        0.1,
        0.2,
        0.5,
        0.7,
        0.8,
        0.8,
        0.9,
        1.0,
        1.0,
        1.1,
        1.3,
        1.3,
        1.5,
        1.7,
        1.8,
        2.0,
        2.5,
        2.5,
        2.8,
        2.9,
        3.0,
        3.0,
        3.3,
        4.2,
        4.4,
        5.5,
        6.3,
        6.3,
        6.5,
        6.6,
        7.2
      ],
      "values": [
        -0.4,
        3.0,
        0.5,
        1.0,
        -0.7,
        2.8,
        1.7,
        -0.3,
        -1.9,
        0.8,
        0.2,
        1.2,
        0.7,
        -1.1,
        1.7,
        -0.5,
        -0.6,
        -3.4,
        2.4,
        0.2,
        1.3,
        -0.5,
        -4.0,
        -0.9,
        -1.9,
        1.2,
        -2.8,
        -0.5,
        0.3,
        -1.3,
        0.5,
        -2.3,
        1.9,
        -3.3,
        -0.7,
        -1.8,
        1.1,
        0.3,
        -2.4,
        -1.1,
        0.1,
        0.6,
        0.2,
        1.1,
        -1.6,
        -2.7,
        -1.2,
        4.0,
        -0.3,
        -1.5,
        -1.7,
        -0.3,
        1.9,
        3.2,
        2.1,
        1.4,
        -0.3,
        2.1
      ],
      "colors": [
        "#f57a2c",
        "#fee0c4",
        "#fdae6b",
        "#fdae6b",
        "#f57a2c",
        "#fdae6b",
        "#f57a2c",
        "#f57a2c",
        "#f57a2c",
        "#fdae6b",
        "#fdae6b",
        "#fdae6b",
        "#fdae6b",
        "#f57a2c",
        "#f57a2c",
        "#f57a2c",
        "#f57a2c",
        "#d94801",
        "#fdae6b",
        "#f57a2c",
        "#fdae6b",
        "#f57a2c",
        "#d94801",
        "#f57a2c",
        "#f57a2c",
        "#fee0c4",
        "#d94801",
        "#f57a2c",
        "#f57a2c",
        "#f57a2c",
        "#fdae6b",
        "#d94801",
        "#fee0c4",
        "#d94801",
        "#d94801",
        "#f57a2c",
        "#fee0c4",
        "#d94801",
        "#f57a2c",
        "#f57a2c",
        "#fee0c4",
        "#fdae6b",
        "#fdae6b",
        "#fdae6b",
        "#f57a2c",
        "#f57a2c",
        "#d94801",
        "#fee0c4",
        "#d94801",
        "#d94801",
        "#f57a2c",
        "#fee0c4",
        "#f57a2c",
        "#fee0c4",
        "#d94801",
        "#d94801",
        "#d94801",
        "#d94801"
      ]
    }
  ]
}
